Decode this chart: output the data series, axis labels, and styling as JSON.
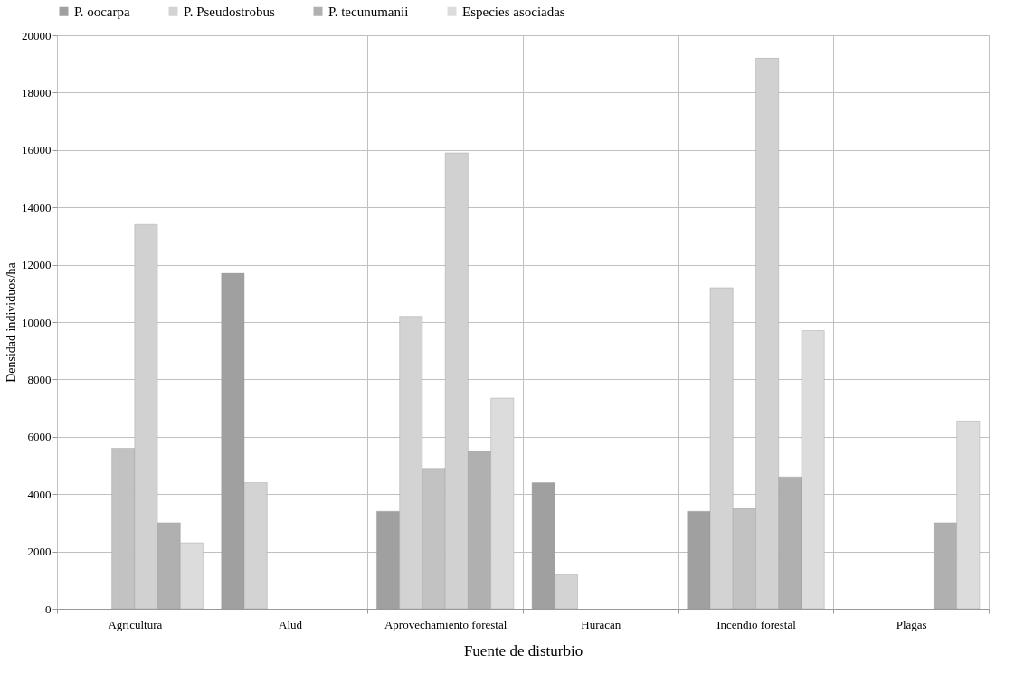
{
  "chart_data": {
    "type": "bar",
    "xlabel": "Fuente de disturbio",
    "ylabel": "Densidad individuos/ha",
    "categories": [
      "Agricultura",
      "Alud",
      "Aprovechamiento forestal",
      "Huracan",
      "Incendio forestal",
      "Plagas"
    ],
    "series": [
      {
        "name": "P. oocarpa",
        "color": "#a0a0a0",
        "values": [
          null,
          11700,
          3400,
          4400,
          3400,
          null
        ]
      },
      {
        "name": "P. Pseudostrobus",
        "color": "#d3d3d3",
        "values": [
          null,
          4400,
          10200,
          1200,
          11200,
          null
        ]
      },
      {
        "color": "#c2c2c2",
        "values": [
          5600,
          null,
          4900,
          null,
          3500,
          null
        ]
      },
      {
        "color": "#d1d1d1",
        "values": [
          13400,
          null,
          15900,
          null,
          19200,
          null
        ]
      },
      {
        "name": "P. tecunumanii",
        "color": "#b0b0b0",
        "values": [
          3000,
          null,
          5500,
          null,
          4600,
          3000
        ]
      },
      {
        "name": "Especies asociadas",
        "color": "#dcdcdc",
        "values": [
          2300,
          null,
          7350,
          null,
          9700,
          6550
        ]
      }
    ],
    "ylim": [
      0,
      20000
    ],
    "yticks": [
      0,
      2000,
      4000,
      6000,
      8000,
      10000,
      12000,
      14000,
      16000,
      18000,
      20000
    ],
    "grid": true,
    "legend": "top"
  }
}
